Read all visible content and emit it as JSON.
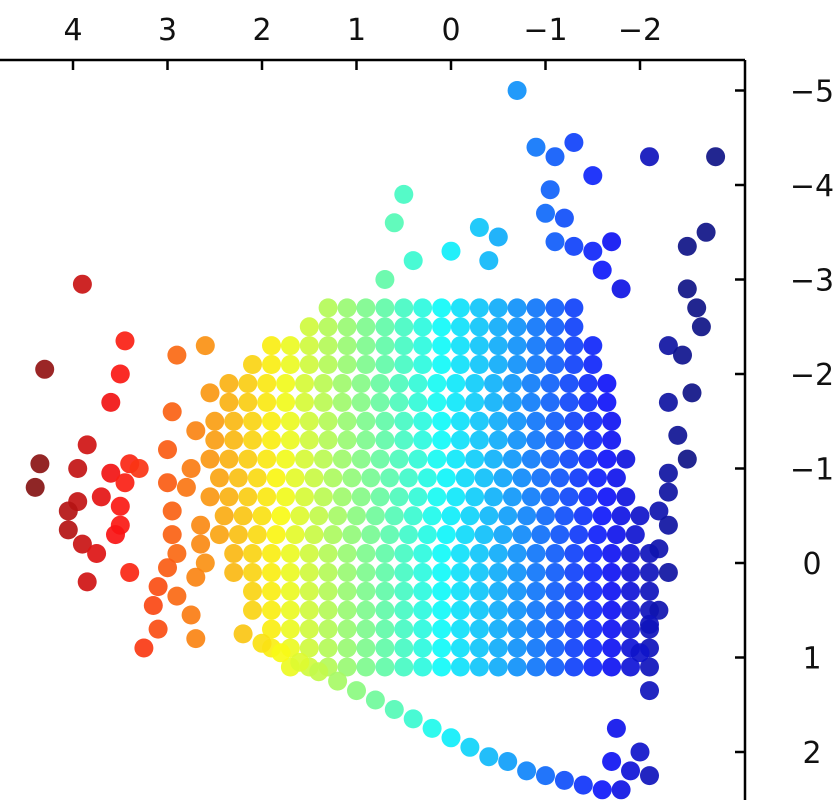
{
  "chart_data": {
    "type": "scatter",
    "title": "",
    "xlabel": "",
    "ylabel": "",
    "x_axis": {
      "position": "top",
      "inverted": true,
      "range": [
        4.4,
        -2.85
      ],
      "ticks": [
        4,
        3,
        2,
        1,
        0,
        -1,
        -2
      ],
      "tick_labels": [
        "4",
        "3",
        "2",
        "1",
        "0",
        "−1",
        "−2"
      ]
    },
    "y_axis": {
      "position": "right",
      "inverted": true,
      "range": [
        -5.5,
        2.7
      ],
      "ticks": [
        -5,
        -4,
        -3,
        -2,
        -1,
        0,
        1,
        2
      ],
      "tick_labels": [
        "−5",
        "−4",
        "−3",
        "−2",
        "−1",
        "0",
        "1",
        "2"
      ]
    },
    "grid": false,
    "legend": "none",
    "colormap": "jet",
    "color_range": [
      -2.5,
      4.4
    ],
    "marker_size": 10,
    "points": [
      [
        3.9,
        -2.95
      ],
      [
        3.45,
        -2.35
      ],
      [
        4.3,
        -2.05
      ],
      [
        3.5,
        -2.0
      ],
      [
        3.6,
        -1.7
      ],
      [
        3.85,
        -1.25
      ],
      [
        3.4,
        -1.05
      ],
      [
        4.35,
        -1.05
      ],
      [
        3.95,
        -1.0
      ],
      [
        3.3,
        -1.0
      ],
      [
        3.6,
        -0.95
      ],
      [
        3.45,
        -0.85
      ],
      [
        4.4,
        -0.8
      ],
      [
        3.7,
        -0.7
      ],
      [
        3.95,
        -0.65
      ],
      [
        3.5,
        -0.6
      ],
      [
        4.05,
        -0.55
      ],
      [
        3.5,
        -0.4
      ],
      [
        4.05,
        -0.35
      ],
      [
        3.55,
        -0.3
      ],
      [
        3.9,
        -0.2
      ],
      [
        3.75,
        -0.1
      ],
      [
        3.4,
        0.1
      ],
      [
        3.85,
        0.2
      ],
      [
        2.6,
        -2.3
      ],
      [
        2.9,
        -2.2
      ],
      [
        2.55,
        -1.8
      ],
      [
        2.95,
        -1.6
      ],
      [
        2.7,
        -1.4
      ],
      [
        3.0,
        -1.2
      ],
      [
        2.75,
        -1.0
      ],
      [
        3.0,
        -0.85
      ],
      [
        2.8,
        -0.8
      ],
      [
        2.95,
        -0.55
      ],
      [
        2.65,
        -0.4
      ],
      [
        2.95,
        -0.3
      ],
      [
        2.65,
        -0.2
      ],
      [
        2.9,
        -0.1
      ],
      [
        2.6,
        0.0
      ],
      [
        3.0,
        0.05
      ],
      [
        2.7,
        0.15
      ],
      [
        3.1,
        0.25
      ],
      [
        2.9,
        0.35
      ],
      [
        3.15,
        0.45
      ],
      [
        2.75,
        0.55
      ],
      [
        3.1,
        0.7
      ],
      [
        3.25,
        0.9
      ],
      [
        2.7,
        0.8
      ]
    ]
  },
  "grid_points": {
    "rows_y": [
      -2.7,
      -2.5,
      -2.3,
      -2.1,
      -1.9,
      -1.7,
      -1.5,
      -1.3,
      -1.1,
      -0.9,
      -0.7,
      -0.5,
      -0.3,
      -0.1,
      0.1,
      0.3,
      0.5,
      0.7,
      0.9,
      1.1
    ],
    "left_x": [
      1.3,
      1.6,
      1.9,
      2.2,
      2.35,
      2.45,
      2.5,
      2.6,
      2.55,
      2.55,
      2.55,
      2.5,
      2.45,
      2.4,
      2.3,
      2.2,
      2.1,
      2.0,
      1.9,
      1.8
    ],
    "right_x": [
      -1.3,
      -1.4,
      -1.5,
      -1.6,
      -1.7,
      -1.75,
      -1.8,
      -1.85,
      -1.9,
      -1.95,
      -2.0,
      -2.05,
      -2.1,
      -2.1,
      -2.15,
      -2.15,
      -2.2,
      -2.2,
      -2.2,
      -2.2
    ],
    "step_x": 0.2
  },
  "curve_points": [
    [
      2.2,
      0.75
    ],
    [
      2.0,
      0.85
    ],
    [
      1.8,
      0.95
    ],
    [
      1.6,
      1.05
    ],
    [
      1.4,
      1.15
    ],
    [
      1.2,
      1.25
    ],
    [
      1.0,
      1.35
    ],
    [
      0.8,
      1.45
    ],
    [
      0.6,
      1.55
    ],
    [
      0.4,
      1.65
    ],
    [
      0.2,
      1.75
    ],
    [
      0.0,
      1.85
    ],
    [
      -0.2,
      1.95
    ],
    [
      -0.4,
      2.05
    ],
    [
      -0.6,
      2.1
    ],
    [
      -0.8,
      2.2
    ],
    [
      -1.0,
      2.25
    ],
    [
      -1.2,
      2.3
    ],
    [
      -1.4,
      2.35
    ],
    [
      -1.6,
      2.4
    ],
    [
      -1.8,
      2.4
    ],
    [
      -1.9,
      2.2
    ],
    [
      -2.0,
      2.0
    ],
    [
      -1.7,
      2.1
    ],
    [
      -2.1,
      2.25
    ]
  ],
  "outer_points": [
    [
      -0.7,
      -5.0
    ],
    [
      -0.9,
      -4.4
    ],
    [
      -1.1,
      -4.3
    ],
    [
      -1.3,
      -4.45
    ],
    [
      -1.5,
      -4.1
    ],
    [
      -1.05,
      -3.95
    ],
    [
      -1.0,
      -3.7
    ],
    [
      -1.2,
      -3.65
    ],
    [
      -1.1,
      -3.4
    ],
    [
      -1.3,
      -3.35
    ],
    [
      -1.5,
      -3.3
    ],
    [
      -1.7,
      -3.4
    ],
    [
      -1.6,
      -3.1
    ],
    [
      -1.8,
      -2.9
    ],
    [
      -2.1,
      -4.3
    ],
    [
      -2.8,
      -4.3
    ],
    [
      -2.7,
      -3.5
    ],
    [
      -2.5,
      -3.35
    ],
    [
      -2.5,
      -2.9
    ],
    [
      -2.6,
      -2.7
    ],
    [
      -2.65,
      -2.5
    ],
    [
      -2.3,
      -2.3
    ],
    [
      -2.45,
      -2.2
    ],
    [
      -2.55,
      -1.8
    ],
    [
      -2.3,
      -1.7
    ],
    [
      -2.4,
      -1.35
    ],
    [
      -2.5,
      -1.1
    ],
    [
      -2.3,
      -0.95
    ],
    [
      -2.3,
      -0.75
    ],
    [
      -2.2,
      -0.55
    ],
    [
      -2.3,
      -0.4
    ],
    [
      -2.2,
      -0.15
    ],
    [
      -2.3,
      0.1
    ],
    [
      -2.2,
      0.5
    ],
    [
      -2.1,
      0.65
    ],
    [
      -2.0,
      0.95
    ],
    [
      -2.1,
      1.35
    ],
    [
      -1.75,
      1.75
    ],
    [
      0.5,
      -3.9
    ],
    [
      0.6,
      -3.6
    ],
    [
      0.4,
      -3.2
    ],
    [
      0.7,
      -3.0
    ],
    [
      0.0,
      -3.3
    ],
    [
      -0.3,
      -3.55
    ],
    [
      -0.5,
      -3.45
    ],
    [
      -0.4,
      -3.2
    ]
  ]
}
